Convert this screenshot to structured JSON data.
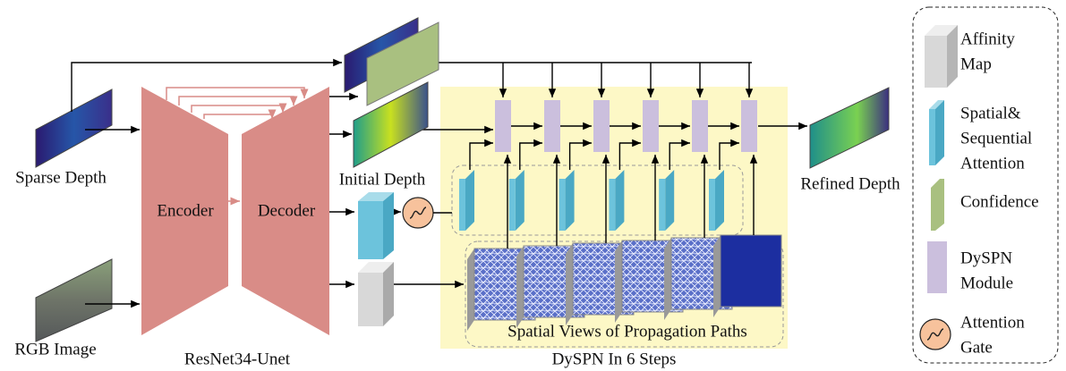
{
  "inputs": {
    "sparse_depth": "Sparse Depth",
    "rgb_image": "RGB Image"
  },
  "backbone": {
    "encoder": "Encoder",
    "decoder": "Decoder",
    "name": "ResNet34-Unet"
  },
  "initial_depth": "Initial Depth",
  "refined_depth": "Refined Depth",
  "dyspn": {
    "paths_label": "Spatial Views of Propagation Paths",
    "name": "DySPN In 6 Steps"
  },
  "legend": {
    "items": [
      {
        "label": [
          "Affinity",
          "Map"
        ]
      },
      {
        "label": [
          "Spatial&",
          "Sequential",
          "Attention"
        ]
      },
      {
        "label": [
          "Confidence"
        ]
      },
      {
        "label": [
          "DySPN",
          "Module"
        ]
      },
      {
        "label": [
          "Attention",
          "Gate"
        ]
      }
    ]
  }
}
